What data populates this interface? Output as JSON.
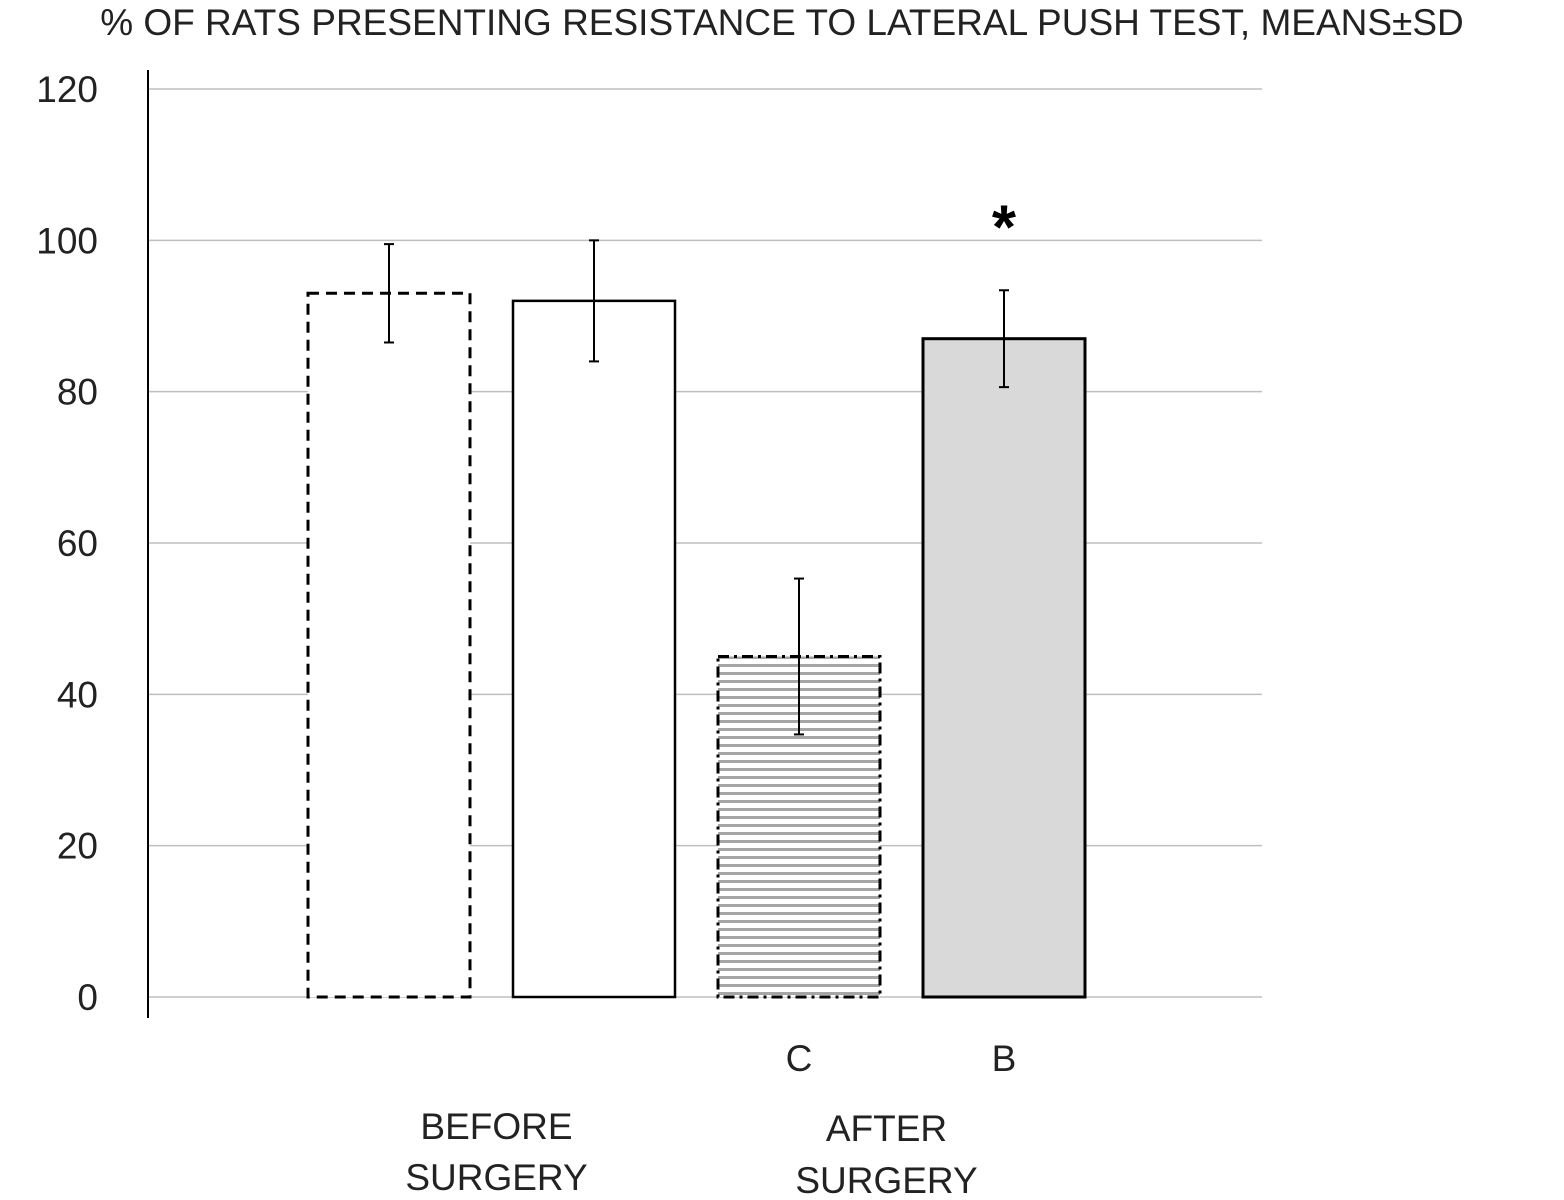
{
  "chart_data": {
    "type": "bar",
    "title": "% OF RATS PRESENTING RESISTANCE TO LATERAL PUSH TEST, MEANS±SD",
    "xlabel": "",
    "ylabel": "",
    "ylim": [
      0,
      120
    ],
    "yticks": [
      0,
      20,
      40,
      60,
      80,
      100,
      120
    ],
    "grid": true,
    "categories": [
      "",
      "",
      "C",
      "B"
    ],
    "values": [
      93,
      92,
      45,
      87
    ],
    "errors": [
      6.5,
      8,
      10.3,
      6.4
    ],
    "bar_styles": [
      "dashed-white",
      "solid-white",
      "hatched-dashdot",
      "solid-gray"
    ],
    "group_labels": [
      {
        "lines": [
          "BEFORE",
          "SURGERY"
        ],
        "bars": [
          0,
          1
        ]
      },
      {
        "lines": [
          "AFTER",
          "SURGERY"
        ],
        "bars": [
          2,
          3
        ]
      }
    ],
    "annotations": [
      {
        "text": "*",
        "bar": 3
      }
    ],
    "colors": {
      "gray_fill": "#d9d9d9",
      "hatch": "#a6a6a6",
      "grid": "#bfbfbf",
      "outline": "#000000"
    }
  }
}
